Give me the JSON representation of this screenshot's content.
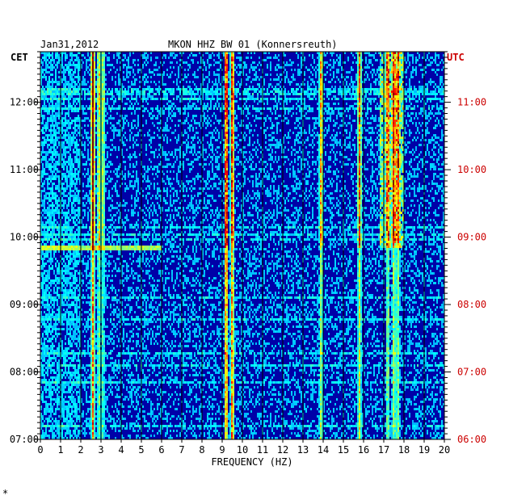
{
  "header": {
    "date": "Jan31,2012",
    "station": "MKON HHZ BW 01 (Konnersreuth)",
    "left_tz": "CET",
    "right_tz": "UTC"
  },
  "footer_mark": "*",
  "colors": {
    "background": "#0000a8",
    "utc_labels": "#cc0000",
    "grid": "#000000"
  },
  "chart_data": {
    "type": "heatmap",
    "title": "MKON HHZ BW 01 (Konnersreuth)",
    "xlabel": "FREQUENCY (HZ)",
    "xlim": [
      0,
      20
    ],
    "x_ticks": [
      "0",
      "1",
      "2",
      "3",
      "4",
      "5",
      "6",
      "7",
      "8",
      "9",
      "10",
      "11",
      "12",
      "13",
      "14",
      "15",
      "16",
      "17",
      "18",
      "19",
      "20"
    ],
    "y_ticks_cet": [
      "12:00",
      "11:00",
      "10:00",
      "09:00",
      "08:00",
      "07:00"
    ],
    "y_ticks_utc": [
      "11:00",
      "10:00",
      "09:00",
      "08:00",
      "07:00",
      "06:00"
    ],
    "y_tick_hours_cet": [
      12,
      11,
      10,
      9,
      8,
      7
    ],
    "ylim_cet_hours": [
      7.0,
      12.75
    ],
    "spectral_lines": [
      {
        "freq": 2.6,
        "strength": 0.95
      },
      {
        "freq": 2.9,
        "strength": 0.45
      },
      {
        "freq": 3.1,
        "strength": 0.35
      },
      {
        "freq": 9.2,
        "strength": 0.9
      },
      {
        "freq": 9.5,
        "strength": 0.85
      },
      {
        "freq": 13.9,
        "strength": 0.6
      },
      {
        "freq": 15.8,
        "strength": 0.65
      },
      {
        "freq": 17.2,
        "strength": 0.55
      },
      {
        "freq": 17.5,
        "strength": 0.6
      },
      {
        "freq": 17.7,
        "strength": 0.55
      }
    ],
    "quiet_period_cet_hours": [
      7.0,
      9.85
    ],
    "transient_event_cet_hour": 9.85
  }
}
